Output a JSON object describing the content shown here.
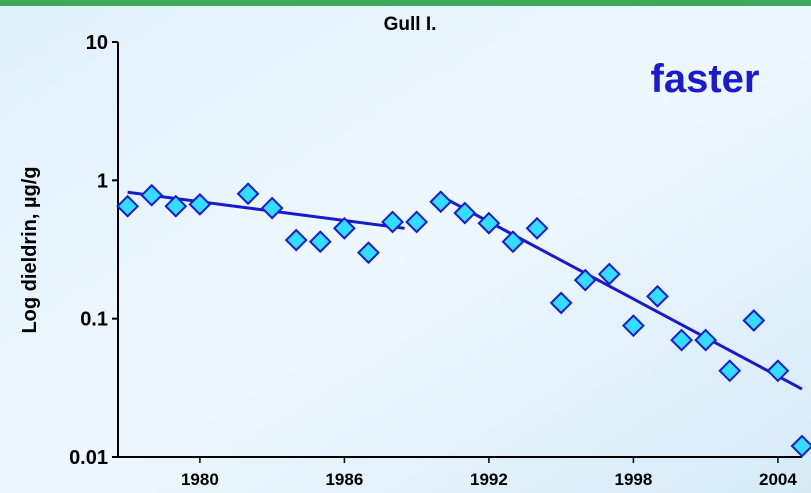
{
  "chart_data": {
    "type": "scatter",
    "title": "Gull I.",
    "annotation": "faster",
    "y_label": "Log dieldrin, µg/g",
    "log_y": true,
    "xlim": [
      1976.6,
      2005
    ],
    "ylim": [
      0.01,
      10
    ],
    "xticks": [
      1980,
      1986,
      1992,
      1998,
      2004
    ],
    "yticks": [
      0.01,
      0.1,
      1,
      10
    ],
    "series": [
      {
        "name": "Dieldrin",
        "color": "#33ddff",
        "edge": "#1a1ad0",
        "x": [
          1977,
          1978,
          1979,
          1980,
          1982,
          1983,
          1984,
          1985,
          1986,
          1987,
          1988,
          1989,
          1990,
          1991,
          1992,
          1993,
          1994,
          1995,
          1996,
          1997,
          1998,
          1999,
          2000,
          2001,
          2002,
          2003,
          2004,
          2005
        ],
        "values": [
          0.65,
          0.78,
          0.65,
          0.67,
          0.8,
          0.63,
          0.37,
          0.36,
          0.45,
          0.3,
          0.5,
          0.5,
          0.7,
          0.58,
          0.49,
          0.36,
          0.45,
          0.13,
          0.19,
          0.21,
          0.089,
          0.145,
          0.07,
          0.07,
          0.042,
          0.097,
          0.042,
          0.012
        ]
      }
    ],
    "trends": [
      {
        "color": "#1a1acc",
        "x": [
          1977,
          1988.5
        ],
        "values": [
          0.82,
          0.45
        ]
      },
      {
        "color": "#1a1acc",
        "x": [
          1990,
          2005
        ],
        "values": [
          0.77,
          0.031
        ]
      }
    ]
  }
}
